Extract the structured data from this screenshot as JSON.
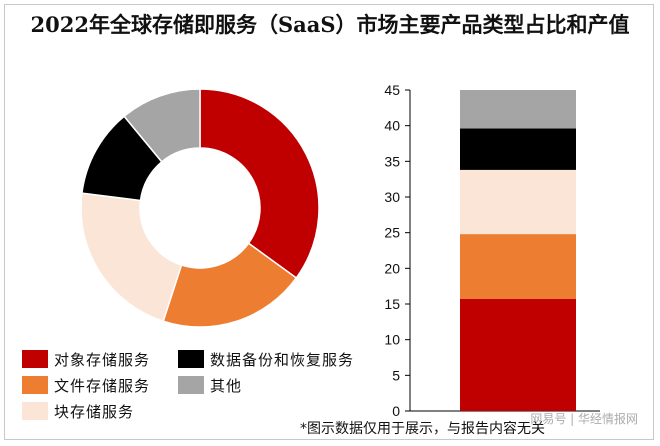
{
  "title": "2022年全球存储即服务（SaaS）市场主要产品类型占比和产值",
  "footnote": "*图示数据仅用于展示，与报告内容无关",
  "watermark": "网易号 | 华经情报网",
  "chart_data": [
    {
      "type": "pie",
      "variant": "donut",
      "slices": [
        {
          "name": "对象存储服务",
          "value": 35,
          "color": "#c00000"
        },
        {
          "name": "文件存储服务",
          "value": 20,
          "color": "#ed7d31"
        },
        {
          "name": "块存储服务",
          "value": 22,
          "color": "#fbe5d6"
        },
        {
          "name": "数据备份和恢复服务",
          "value": 12,
          "color": "#000000"
        },
        {
          "name": "其他",
          "value": 11,
          "color": "#a5a5a5"
        }
      ]
    },
    {
      "type": "bar",
      "stacked": true,
      "ylim": [
        0,
        45
      ],
      "yticks": [
        0,
        5,
        10,
        15,
        20,
        25,
        30,
        35,
        40,
        45
      ],
      "series": [
        {
          "name": "对象存储服务",
          "values": [
            15.7
          ],
          "color": "#c00000"
        },
        {
          "name": "文件存储服务",
          "values": [
            9.1
          ],
          "color": "#ed7d31"
        },
        {
          "name": "块存储服务",
          "values": [
            9.0
          ],
          "color": "#fbe5d6"
        },
        {
          "name": "数据备份和恢复服务",
          "values": [
            5.8
          ],
          "color": "#000000"
        },
        {
          "name": "其他",
          "values": [
            5.4
          ],
          "color": "#a5a5a5"
        }
      ]
    }
  ],
  "legend": [
    {
      "label": "对象存储服务",
      "color": "#c00000"
    },
    {
      "label": "数据备份和恢复服务",
      "color": "#000000"
    },
    {
      "label": "文件存储服务",
      "color": "#ed7d31"
    },
    {
      "label": "其他",
      "color": "#a5a5a5"
    },
    {
      "label": "块存储服务",
      "color": "#fbe5d6"
    }
  ]
}
